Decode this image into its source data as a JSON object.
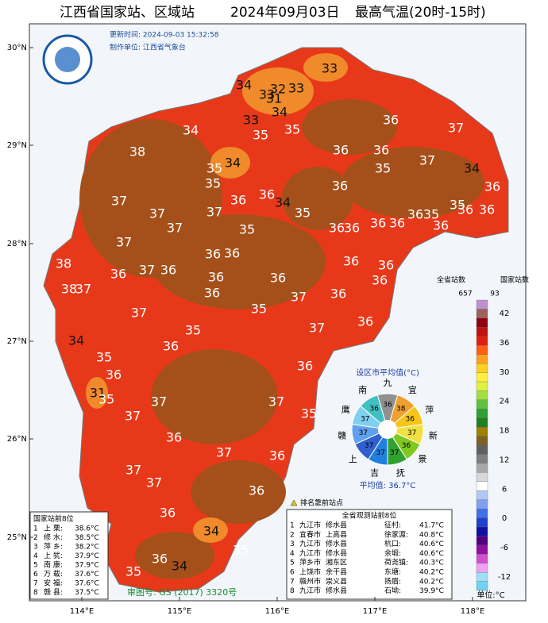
{
  "title": {
    "network": "江西省国家站、区域站",
    "date": "2024年09月03日",
    "element": "最高气温(20时-15时)"
  },
  "header": {
    "update_time": "更新时间: 2024-09-03 15:32:58",
    "producer": "制作单位: 江西省气象台"
  },
  "lat_labels": [
    "30°N",
    "29°N",
    "28°N",
    "27°N",
    "26°N",
    "25°N"
  ],
  "lon_labels": [
    "114°E",
    "115°E",
    "116°E",
    "117°E",
    "118°E"
  ],
  "map_labels": [
    33,
    34,
    32,
    33,
    33,
    31,
    34,
    33,
    36,
    37,
    34,
    35,
    35,
    38,
    36,
    36,
    37,
    34,
    35,
    35,
    34,
    35,
    36,
    36,
    37,
    36,
    36,
    34,
    35,
    37,
    37,
    35,
    36,
    35,
    36,
    36,
    35,
    36,
    36,
    36,
    36,
    36,
    37,
    37,
    36,
    36,
    36,
    38,
    36,
    37,
    36,
    36,
    36,
    36,
    36,
    38,
    37,
    36,
    37,
    36,
    37,
    35,
    37,
    36,
    35,
    36,
    34,
    35,
    36,
    36,
    31,
    37,
    37,
    35,
    37,
    35,
    36,
    37,
    36,
    37,
    37,
    36,
    36,
    34,
    35,
    36,
    35,
    34
  ],
  "colorbar": {
    "province_header": "全省站数",
    "national_header": "国家站数",
    "province_count": "657",
    "national_count": "93",
    "ticks": [
      42,
      36,
      30,
      24,
      18,
      12,
      6,
      0,
      -6,
      -12
    ],
    "unit": "单位:°C"
  },
  "city_average": {
    "title": "设区市平均值(°C)",
    "labels": [
      "九",
      "宜",
      "萍",
      "新",
      "景",
      "抚",
      "吉",
      "上",
      "赣",
      "鹰",
      "南"
    ],
    "values": [
      36,
      38,
      36,
      37,
      36,
      37,
      37,
      37,
      37,
      37,
      36
    ],
    "average": "平均值: 36.7°C"
  },
  "ranking_note": "排名靠前站点",
  "national_top": {
    "title": "国家站前8位",
    "rows": [
      [
        "1",
        "上 栗:",
        "38.6°C"
      ],
      [
        "2",
        "修 水:",
        "38.5°C"
      ],
      [
        "3",
        "萍 乡:",
        "38.2°C"
      ],
      [
        "4",
        "上 犹:",
        "37.9°C"
      ],
      [
        "5",
        "南 康:",
        "37.9°C"
      ],
      [
        "6",
        "万 载:",
        "37.6°C"
      ],
      [
        "7",
        "安 福:",
        "37.6°C"
      ],
      [
        "8",
        "赣 县:",
        "37.5°C"
      ]
    ]
  },
  "province_top": {
    "title": "全省观测站前8位",
    "rows": [
      [
        "1",
        "九江市",
        "修水县",
        "征村:",
        "41.7°C"
      ],
      [
        "2",
        "宜春市",
        "上高县",
        "徐家渡:",
        "40.8°C"
      ],
      [
        "3",
        "九江市",
        "修水县",
        "杭口:",
        "40.6°C"
      ],
      [
        "4",
        "九江市",
        "修水县",
        "余塅:",
        "40.6°C"
      ],
      [
        "5",
        "萍乡市",
        "湘东区",
        "荷尧镇:",
        "40.3°C"
      ],
      [
        "6",
        "上饶市",
        "余干县",
        "东塘:",
        "40.2°C"
      ],
      [
        "7",
        "赣州市",
        "崇义县",
        "扬眉:",
        "40.2°C"
      ],
      [
        "8",
        "九江市",
        "修水县",
        "石坳:",
        "39.9°C"
      ]
    ]
  },
  "approval": "审图号: GS (2017) 3320号"
}
